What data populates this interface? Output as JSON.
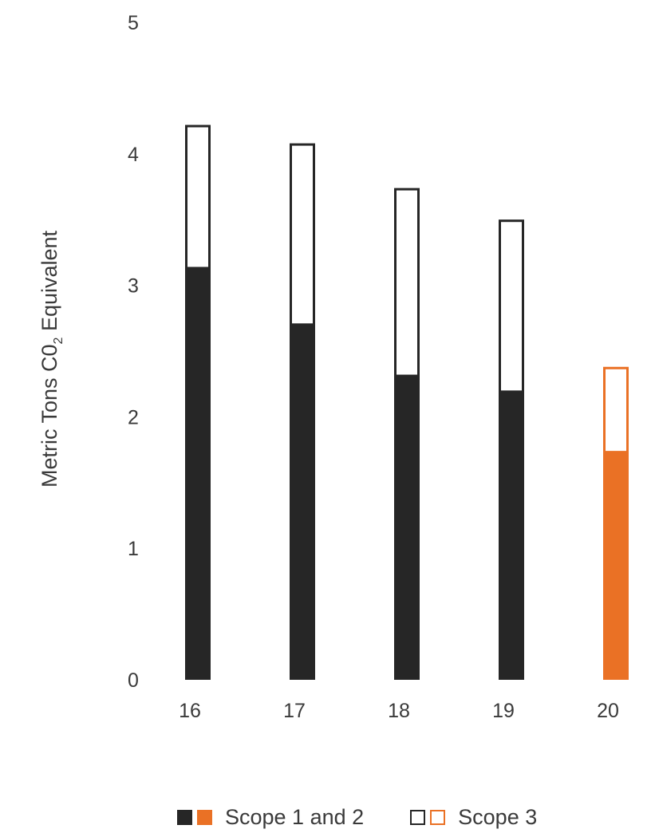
{
  "chart_data": {
    "type": "bar",
    "stacked": true,
    "title": "",
    "xlabel": "",
    "ylabel": "Metric Tons C0",
    "ylabel_subscript": "2",
    "ylabel_suffix": " Equivalent",
    "categories": [
      "16",
      "17",
      "18",
      "19",
      "20"
    ],
    "ylim": [
      0,
      5
    ],
    "yticks": [
      "0",
      "1",
      "2",
      "3",
      "4",
      "5"
    ],
    "grid": false,
    "legend_position": "bottom",
    "series": [
      {
        "name": "Scope 1 and 2",
        "values": [
          3.14,
          2.71,
          2.32,
          2.2,
          1.74
        ],
        "fill": "solid"
      },
      {
        "name": "Scope 3",
        "values": [
          1.08,
          1.37,
          1.42,
          1.3,
          0.64
        ],
        "fill": "outline"
      }
    ],
    "colors": {
      "dark": "#262626",
      "highlight": "#ea7125",
      "outline_fill": "#ffffff"
    },
    "highlight_category": "20"
  },
  "legend": {
    "items": [
      {
        "label": "Scope 1 and 2",
        "style": "solid"
      },
      {
        "label": "Scope 3",
        "style": "outline"
      }
    ]
  }
}
